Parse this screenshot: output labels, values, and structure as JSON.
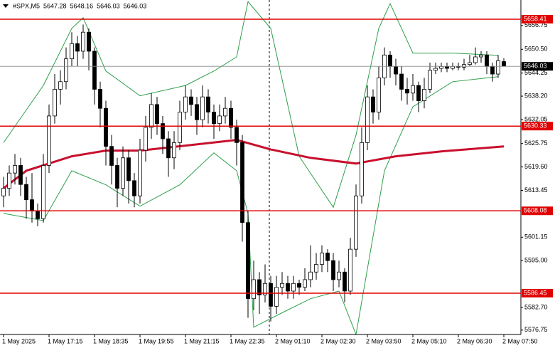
{
  "chart_data": {
    "type": "candlestick",
    "symbol": "#SPX,M5",
    "ohlc": [
      [
        5612,
        5617,
        5609,
        5614
      ],
      [
        5614,
        5620,
        5612,
        5618
      ],
      [
        5618,
        5623,
        5615,
        5620
      ],
      [
        5620,
        5622,
        5612,
        5615
      ],
      [
        5615,
        5617,
        5606,
        5611
      ],
      [
        5611,
        5618,
        5605,
        5608
      ],
      [
        5608,
        5610,
        5604,
        5606
      ],
      [
        5606,
        5623,
        5605,
        5620
      ],
      [
        5620,
        5636,
        5618,
        5633
      ],
      [
        5633,
        5644,
        5631,
        5640
      ],
      [
        5640,
        5645,
        5636,
        5642
      ],
      [
        5642,
        5651,
        5640,
        5648
      ],
      [
        5648,
        5655,
        5646,
        5652
      ],
      [
        5652,
        5654,
        5646,
        5650
      ],
      [
        5650,
        5657,
        5648,
        5655
      ],
      [
        5655,
        5656,
        5645,
        5650
      ],
      [
        5650,
        5651,
        5636,
        5640
      ],
      [
        5640,
        5642,
        5630,
        5635
      ],
      [
        5635,
        5637,
        5620,
        5625
      ],
      [
        5625,
        5628,
        5615,
        5620
      ],
      [
        5620,
        5622,
        5609,
        5614
      ],
      [
        5614,
        5625,
        5612,
        5622
      ],
      [
        5622,
        5624,
        5610,
        5616
      ],
      [
        5616,
        5618,
        5609,
        5612
      ],
      [
        5612,
        5627,
        5610,
        5624
      ],
      [
        5624,
        5633,
        5621,
        5630
      ],
      [
        5630,
        5639,
        5627,
        5636
      ],
      [
        5636,
        5638,
        5628,
        5631
      ],
      [
        5631,
        5633,
        5623,
        5627
      ],
      [
        5627,
        5629,
        5617,
        5622
      ],
      [
        5622,
        5629,
        5619,
        5626
      ],
      [
        5626,
        5637,
        5624,
        5634
      ],
      [
        5634,
        5641,
        5632,
        5638
      ],
      [
        5638,
        5640,
        5633,
        5636
      ],
      [
        5636,
        5638,
        5628,
        5632
      ],
      [
        5632,
        5641,
        5630,
        5638
      ],
      [
        5638,
        5640,
        5631,
        5634
      ],
      [
        5634,
        5636,
        5627,
        5631
      ],
      [
        5631,
        5636,
        5629,
        5633
      ],
      [
        5633,
        5638,
        5631,
        5635
      ],
      [
        5635,
        5637,
        5627,
        5630
      ],
      [
        5630,
        5632,
        5620,
        5626
      ],
      [
        5626,
        5628,
        5600,
        5605
      ],
      [
        5605,
        5608,
        5580,
        5585
      ],
      [
        5585,
        5595,
        5582,
        5590
      ],
      [
        5590,
        5592,
        5581,
        5586
      ],
      [
        5586,
        5594,
        5584,
        5589
      ],
      [
        5589,
        5591,
        5579,
        5583
      ],
      [
        5583,
        5591,
        5581,
        5588
      ],
      [
        5588,
        5592,
        5586,
        5589
      ],
      [
        5589,
        5591,
        5585,
        5587
      ],
      [
        5587,
        5591,
        5585,
        5589
      ],
      [
        5589,
        5590,
        5586,
        5588
      ],
      [
        5588,
        5593,
        5587,
        5590
      ],
      [
        5590,
        5599,
        5588,
        5592
      ],
      [
        5592,
        5597,
        5590,
        5594
      ],
      [
        5594,
        5599,
        5592,
        5597
      ],
      [
        5597,
        5598,
        5592,
        5595
      ],
      [
        5595,
        5597,
        5587,
        5590
      ],
      [
        5590,
        5595,
        5588,
        5592
      ],
      [
        5592,
        5593,
        5584,
        5587
      ],
      [
        5587,
        5601,
        5586,
        5598
      ],
      [
        5598,
        5615,
        5596,
        5612
      ],
      [
        5612,
        5630,
        5610,
        5626
      ],
      [
        5626,
        5641,
        5624,
        5638
      ],
      [
        5638,
        5640,
        5631,
        5634
      ],
      [
        5634,
        5646,
        5632,
        5643
      ],
      [
        5643,
        5651,
        5641,
        5649
      ],
      [
        5649,
        5650,
        5643,
        5646
      ],
      [
        5646,
        5648,
        5641,
        5644
      ],
      [
        5644,
        5646,
        5637,
        5640
      ],
      [
        5640,
        5643,
        5636,
        5639
      ],
      [
        5639,
        5644,
        5637,
        5641
      ],
      [
        5641,
        5642,
        5634,
        5637
      ],
      [
        5637,
        5643,
        5635,
        5640
      ],
      [
        5640,
        5647,
        5639,
        5645
      ],
      [
        5645,
        5647,
        5644,
        5645.5
      ],
      [
        5645.5,
        5647,
        5644.5,
        5646
      ],
      [
        5646,
        5647,
        5644.5,
        5645.5
      ],
      [
        5645.5,
        5647,
        5645,
        5646
      ],
      [
        5646,
        5647,
        5645,
        5645.8
      ],
      [
        5645.8,
        5648,
        5645,
        5646.5
      ],
      [
        5646.5,
        5649,
        5646,
        5647
      ],
      [
        5647,
        5651,
        5646.5,
        5648.5
      ],
      [
        5648.5,
        5650,
        5647,
        5649
      ],
      [
        5649,
        5650,
        5644,
        5646
      ],
      [
        5646,
        5647,
        5642,
        5644
      ],
      [
        5644,
        5649,
        5643,
        5647.5
      ],
      [
        5647.28,
        5648.16,
        5646.03,
        5646.03
      ]
    ],
    "ma": {
      "color": "#c8102e",
      "x": [
        0,
        4,
        12,
        18,
        24,
        32,
        41,
        47,
        54,
        62,
        69,
        77,
        88
      ],
      "values": [
        5614,
        5618.6,
        5622.4,
        5623.9,
        5623.9,
        5625.2,
        5626.7,
        5624.2,
        5622,
        5620.5,
        5622.4,
        5623.7,
        5625
      ]
    },
    "bands": {
      "color": "#2e9e4a",
      "upper": {
        "x": [
          0,
          7,
          12,
          14,
          18,
          24,
          32,
          37,
          41,
          43,
          47,
          52,
          58,
          62,
          66,
          68,
          72,
          79,
          87
        ],
        "values": [
          5626,
          5641,
          5656,
          5658.8,
          5644.8,
          5638.3,
          5641,
          5644.8,
          5648.5,
          5663,
          5656,
          5622.4,
          5609,
          5628,
          5656,
          5662.5,
          5649.5,
          5649.5,
          5648.9
        ]
      },
      "lower": {
        "x": [
          0,
          7,
          12,
          18,
          24,
          31,
          37,
          41,
          43,
          44,
          49,
          54,
          59,
          62,
          67,
          72,
          79,
          87
        ],
        "values": [
          5607.4,
          5605.5,
          5618.6,
          5614.9,
          5609.3,
          5614.9,
          5623.3,
          5618.6,
          5607.4,
          5577.5,
          5581.3,
          5585,
          5587,
          5575.6,
          5618.6,
          5635.4,
          5642,
          5643.3
        ]
      }
    },
    "levels": [
      5658.41,
      5630.33,
      5608.08,
      5586.45
    ],
    "level_color": "#e00000",
    "xlim": [
      -0.625,
      91
    ],
    "ylim": [
      5575.6,
      5663.45
    ],
    "yticks": [
      {
        "value": 5656.75,
        "label": "5656.75"
      },
      {
        "value": 5650.5,
        "label": "5650.50"
      },
      {
        "value": 5644.25,
        "label": "5644.25"
      },
      {
        "value": 5638.2,
        "label": "5638.20"
      },
      {
        "value": 5632.05,
        "label": "5632.05"
      },
      {
        "value": 5625.75,
        "label": "5625.75"
      },
      {
        "value": 5619.6,
        "label": "5619.60"
      },
      {
        "value": 5613.45,
        "label": "5613.45"
      },
      {
        "value": 5601.15,
        "label": "5601.15"
      },
      {
        "value": 5595,
        "label": "5595.00"
      },
      {
        "value": 5582.7,
        "label": "5582.70"
      },
      {
        "value": 5576.75,
        "label": "5576.75"
      }
    ],
    "xticks": [
      {
        "value": 0,
        "label": "1 May 2025"
      },
      {
        "value": 8,
        "label": "1 May 17:15"
      },
      {
        "value": 16,
        "label": "1 May 18:35"
      },
      {
        "value": 24,
        "label": "1 May 19:55"
      },
      {
        "value": 32,
        "label": "1 May 21:15"
      },
      {
        "value": 40,
        "label": "1 May 22:35"
      },
      {
        "value": 48,
        "label": "2 May 01:10"
      },
      {
        "value": 56,
        "label": "2 May 02:30"
      },
      {
        "value": 64,
        "label": "2 May 03:50"
      },
      {
        "value": 72,
        "label": "2 May 05:10"
      },
      {
        "value": 80,
        "label": "2 May 06:30"
      },
      {
        "value": 88,
        "label": "2 May 07:50"
      }
    ]
  }
}
